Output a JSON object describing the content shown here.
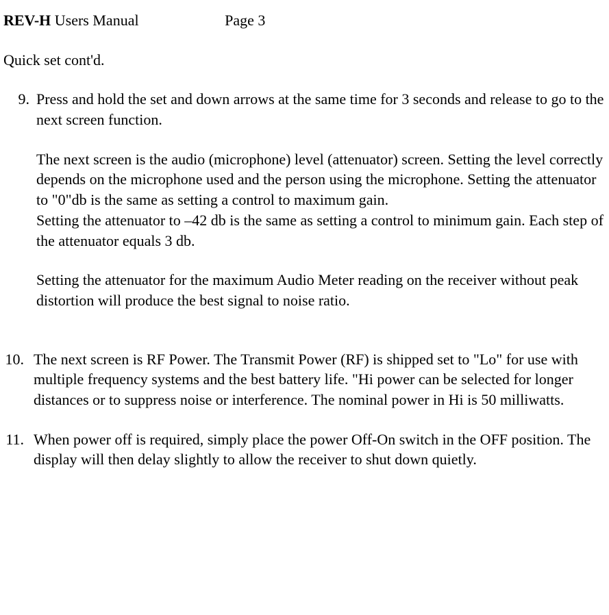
{
  "header": {
    "title_bold": "REV-H",
    "title_rest": " Users Manual",
    "page_label": "Page 3"
  },
  "section_title": "Quick set cont'd.",
  "items": [
    {
      "number": " 9.",
      "paragraphs": [
        "Press and hold the set and down arrows at the same time for 3 seconds and release to go to the next screen function.",
        "The next screen is the audio (microphone) level (attenuator) screen. Setting the level correctly depends on the microphone used and the person using the microphone. Setting the attenuator to \"0\"db is the same as setting a control to maximum gain.\nSetting the attenuator to –42 db is the same as setting a control to minimum gain. Each step of the attenuator equals 3 db.",
        "Setting the attenuator for the maximum Audio Meter reading on the receiver without peak distortion will produce the best signal to noise ratio."
      ]
    },
    {
      "number": "10.",
      "paragraphs": [
        "The next screen is RF Power. The Transmit Power (RF) is shipped set to \"Lo\" for use with multiple frequency systems and the best battery life. \"Hi power can be selected for longer distances or to suppress noise or interference. The nominal power in Hi is 50 milliwatts."
      ]
    },
    {
      "number": "11.",
      "paragraphs": [
        "When power off is required, simply place the power Off-On switch in the OFF position. The display will then delay slightly to allow the receiver to shut down quietly."
      ]
    }
  ]
}
